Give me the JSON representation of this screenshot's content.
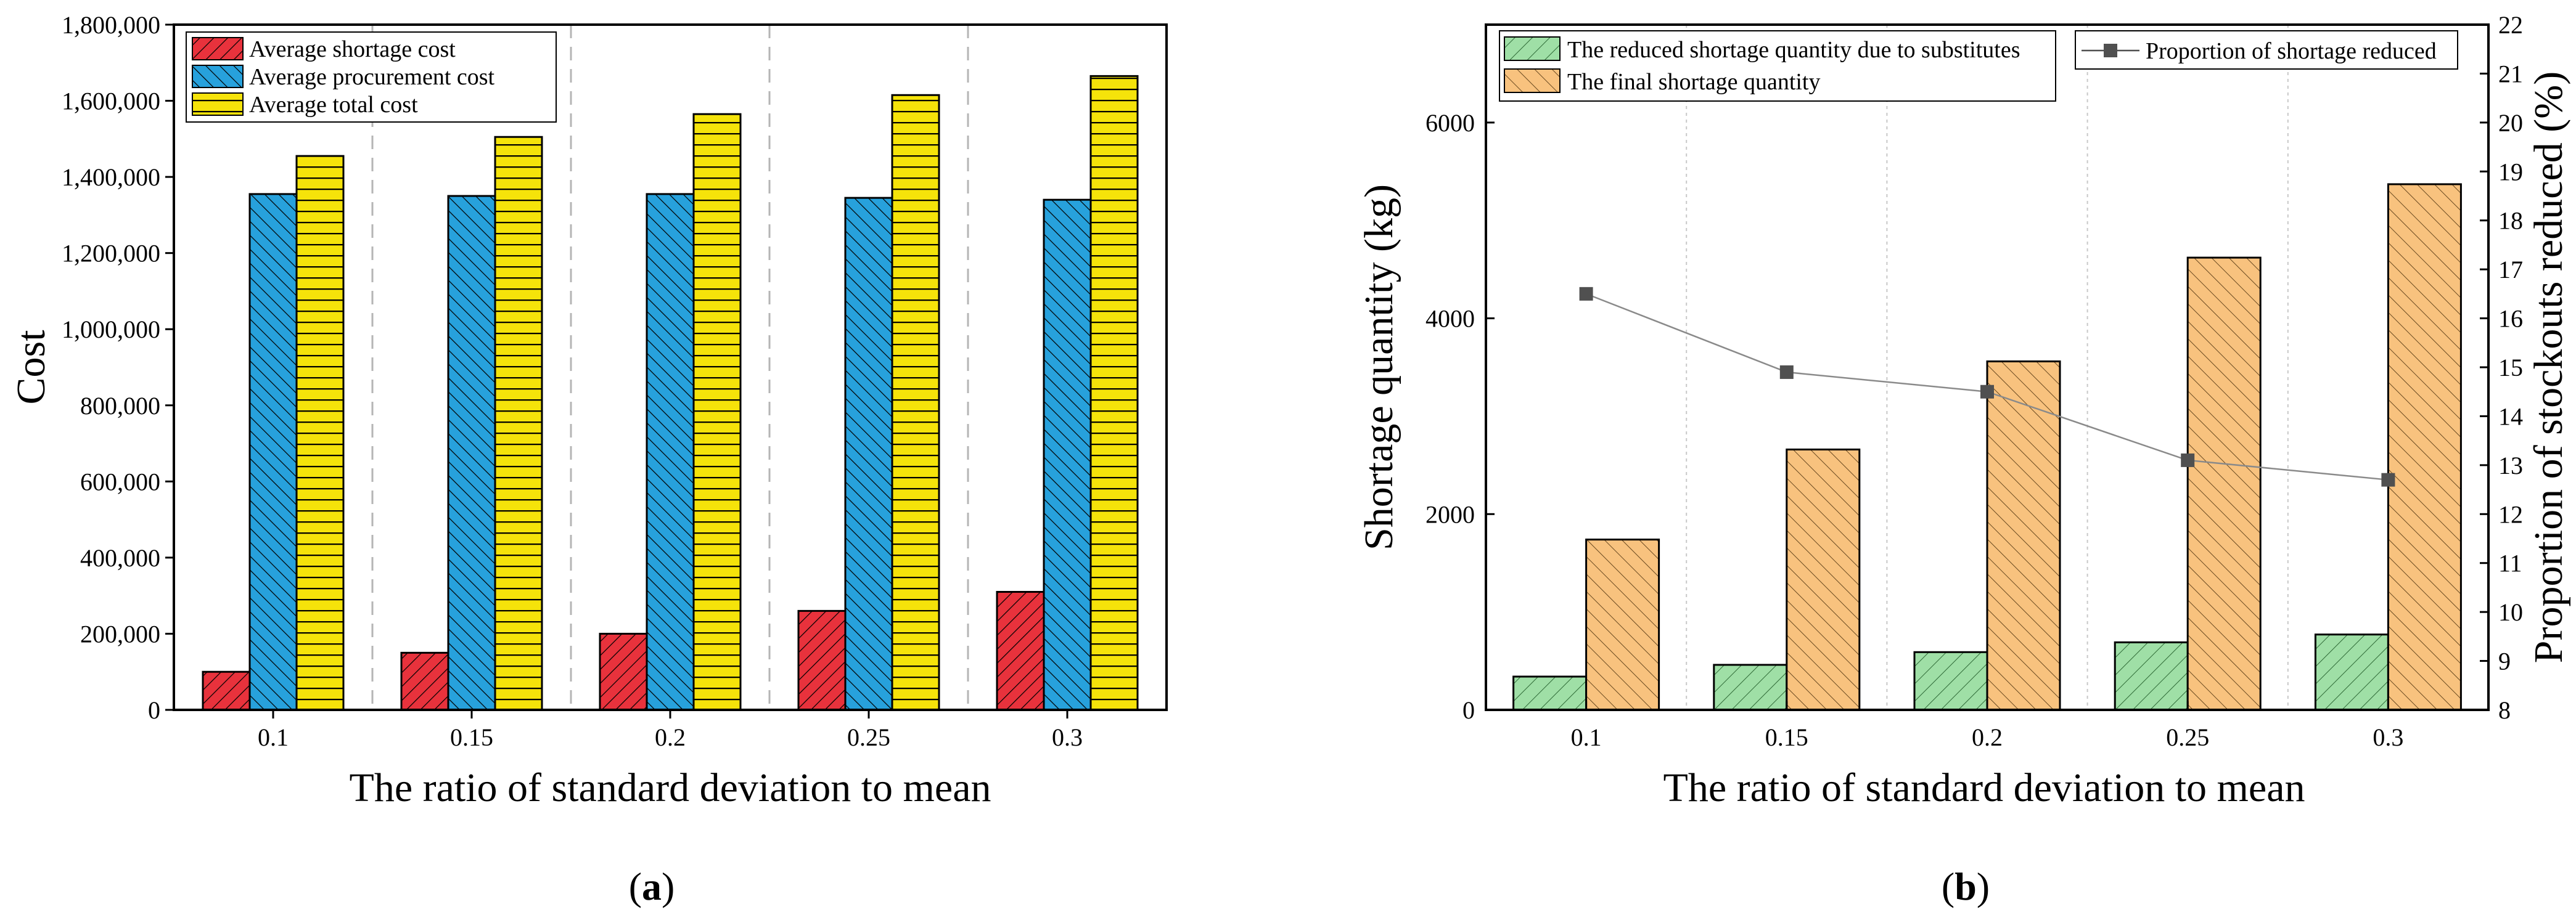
{
  "chart_data": [
    {
      "type": "bar",
      "panel_label": "(a)",
      "panel_letter": "a",
      "xlabel": "The ratio of standard deviation to mean",
      "ylabel": "Cost",
      "categories": [
        "0.1",
        "0.15",
        "0.2",
        "0.25",
        "0.3"
      ],
      "ylim": [
        0,
        1800000
      ],
      "yticks": [
        0,
        200000,
        400000,
        600000,
        800000,
        1000000,
        1200000,
        1400000,
        1600000,
        1800000
      ],
      "ytick_labels": [
        "0",
        "200,000",
        "400,000",
        "600,000",
        "800,000",
        "1,000,000",
        "1,200,000",
        "1,400,000",
        "1,600,000",
        "1,800,000"
      ],
      "legend_position": "top-left",
      "series": [
        {
          "name": "Average shortage cost",
          "color": "#e8323c",
          "pattern": "diagonal",
          "values": [
            100000,
            150000,
            200000,
            260000,
            310000
          ]
        },
        {
          "name": "Average procurement cost",
          "color": "#27a1dc",
          "pattern": "back-diagonal",
          "values": [
            1355000,
            1350000,
            1355000,
            1345000,
            1340000
          ]
        },
        {
          "name": "Average total cost",
          "color": "#f5e30a",
          "pattern": "horizontal",
          "values": [
            1455000,
            1505000,
            1565000,
            1615000,
            1665000
          ]
        }
      ]
    },
    {
      "type": "bar",
      "panel_label": "(b)",
      "panel_letter": "b",
      "xlabel": "The ratio of standard deviation to mean",
      "ylabel": "Shortage quantity (kg)",
      "y2label": "Proportion of stockouts reduced (%)",
      "categories": [
        "0.1",
        "0.15",
        "0.2",
        "0.25",
        "0.3"
      ],
      "ylim": [
        0,
        7000
      ],
      "yticks": [
        0,
        2000,
        4000,
        6000
      ],
      "ytick_labels": [
        "0",
        "2000",
        "4000",
        "6000"
      ],
      "y2lim": [
        8,
        22
      ],
      "y2ticks": [
        8,
        9,
        10,
        11,
        12,
        13,
        14,
        15,
        16,
        17,
        18,
        19,
        20,
        21,
        22
      ],
      "legend_position": "top",
      "series": [
        {
          "name": "The reduced shortage quantity due to substitutes",
          "color": "#9fdfa6",
          "pattern": "diagonal",
          "values": [
            340,
            460,
            590,
            690,
            770
          ]
        },
        {
          "name": "The final shortage quantity",
          "color": "#f8c27e",
          "pattern": "back-diagonal",
          "values": [
            1740,
            2660,
            3560,
            4620,
            5370
          ]
        }
      ],
      "line_series": {
        "name": "Proportion of shortage reduced",
        "color": "#505050",
        "axis": "right",
        "values": [
          16.5,
          14.9,
          14.5,
          13.1,
          12.7
        ]
      }
    }
  ]
}
